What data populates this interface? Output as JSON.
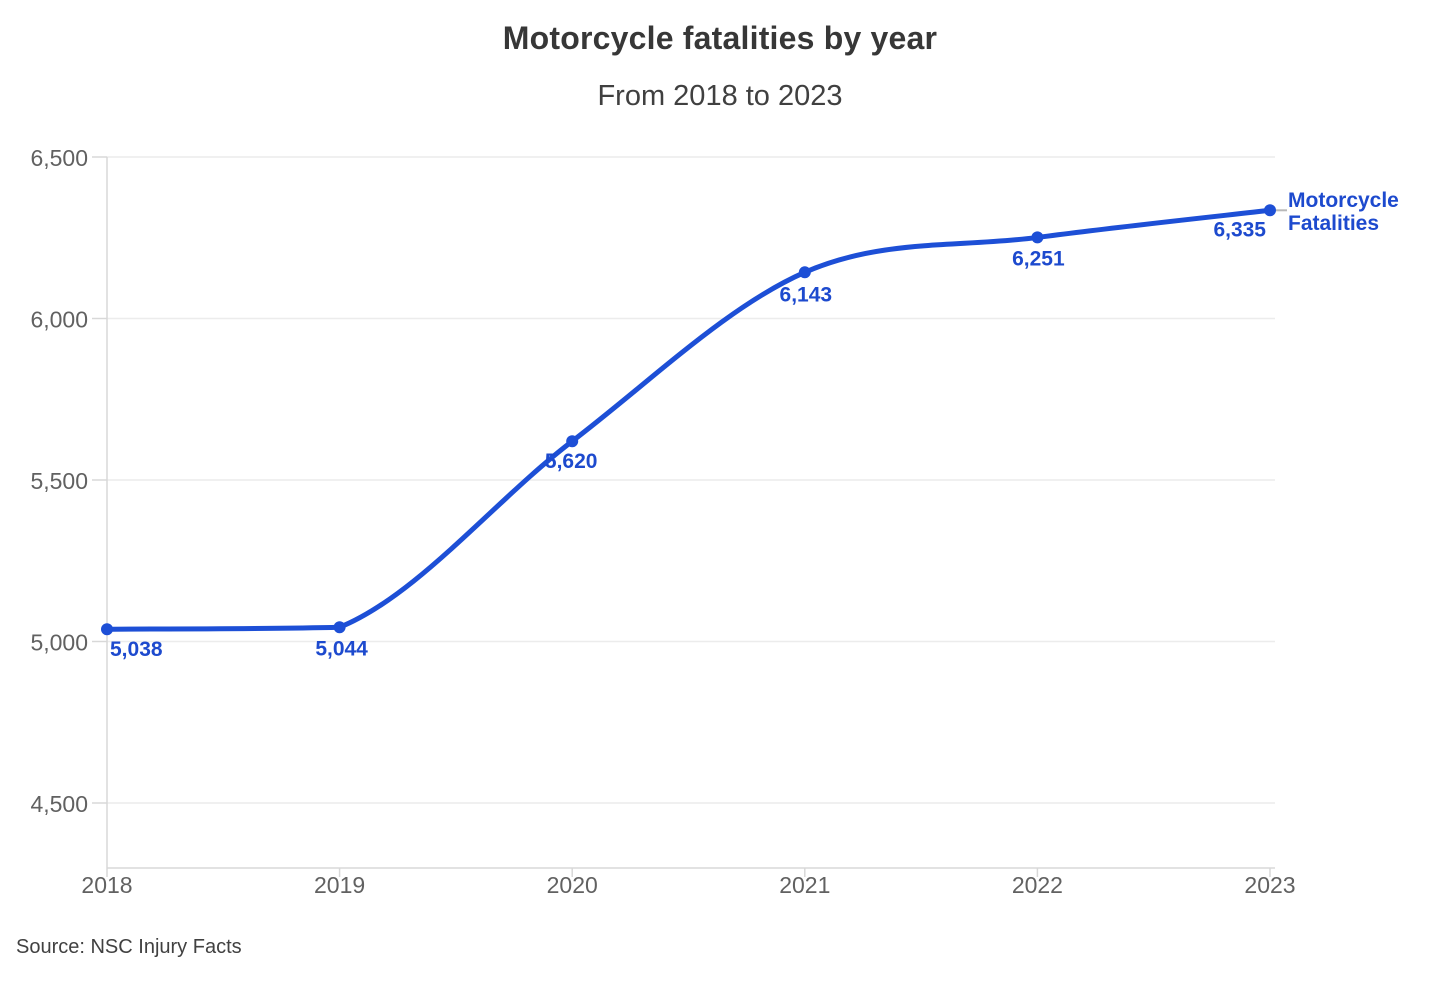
{
  "header": {
    "title": "Motorcycle fatalities by year",
    "subtitle": "From 2018 to 2023"
  },
  "legend": {
    "line1": "Motorcycle",
    "line2": "Fatalities"
  },
  "source": {
    "label": "Source: NSC Injury Facts"
  },
  "colors": {
    "accent_line": "#1d4fd6",
    "accent_text": "#1d4ace",
    "grid": "#ececec",
    "axis": "#d8d8d8",
    "tick_text": "#616161",
    "connector": "#b9b9b9"
  },
  "chart_data": {
    "type": "line",
    "title": "Motorcycle fatalities by year",
    "subtitle": "From 2018 to 2023",
    "x": [
      2018,
      2019,
      2020,
      2021,
      2022,
      2023
    ],
    "x_labels": [
      "2018",
      "2019",
      "2020",
      "2021",
      "2022",
      "2023"
    ],
    "series": [
      {
        "name": "Motorcycle Fatalities",
        "values": [
          5038,
          5044,
          5620,
          6143,
          6251,
          6335
        ]
      }
    ],
    "point_labels": [
      "5,038",
      "5,044",
      "5,620",
      "6,143",
      "6,251",
      "6,335"
    ],
    "xlabel": "",
    "ylabel": "",
    "ylim": [
      4500,
      6500
    ],
    "yticks": [
      4500,
      5000,
      5500,
      6000,
      6500
    ],
    "ytick_labels": [
      "4,500",
      "5,000",
      "5,500",
      "6,000",
      "6,500"
    ],
    "grid": true,
    "legend_position": "end-of-line",
    "annotation": "Source: NSC Injury Facts"
  }
}
